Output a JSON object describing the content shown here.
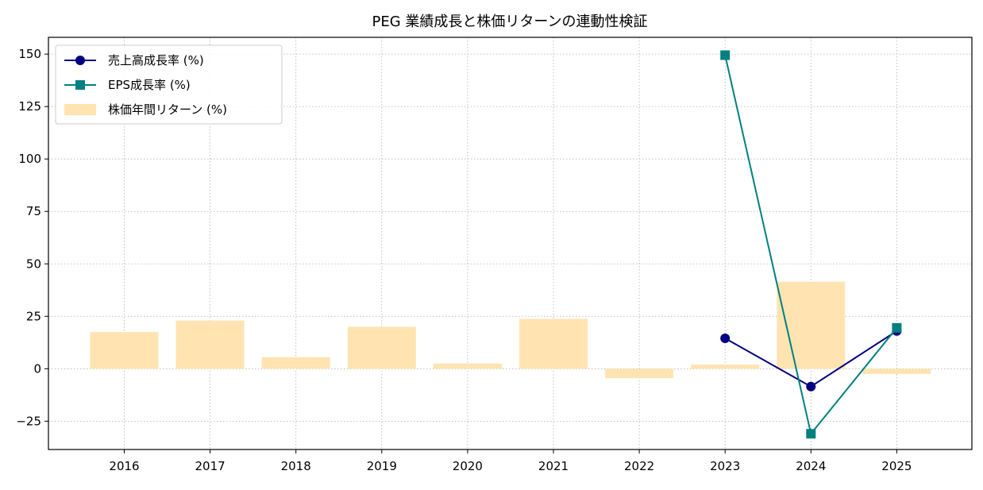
{
  "chart_data": {
    "type": "bar",
    "title": "PEG 業績成長と株価リターンの連動性検証",
    "xlabel": "",
    "ylabel": "",
    "categories": [
      "2016",
      "2017",
      "2018",
      "2019",
      "2020",
      "2021",
      "2022",
      "2023",
      "2024",
      "2025"
    ],
    "ylim": [
      -38.5,
      158
    ],
    "yticks": [
      -25,
      0,
      25,
      50,
      75,
      100,
      125,
      150
    ],
    "grid": true,
    "legend_position": "top-left",
    "series": [
      {
        "name": "売上高成長率 (%)",
        "kind": "line",
        "marker": "circle",
        "color": "#000080",
        "values": [
          null,
          null,
          null,
          null,
          null,
          null,
          null,
          14.5,
          -8.5,
          18.0
        ]
      },
      {
        "name": "EPS成長率 (%)",
        "kind": "line",
        "marker": "square",
        "color": "#008080",
        "values": [
          null,
          null,
          null,
          null,
          null,
          null,
          null,
          149.5,
          -31.0,
          19.5
        ]
      },
      {
        "name": "株価年間リターン (%)",
        "kind": "bar",
        "color": "#ffe4b2",
        "values": [
          17.5,
          23.0,
          5.5,
          20.0,
          2.5,
          23.8,
          -4.5,
          2.0,
          41.5,
          -2.5
        ]
      }
    ]
  }
}
